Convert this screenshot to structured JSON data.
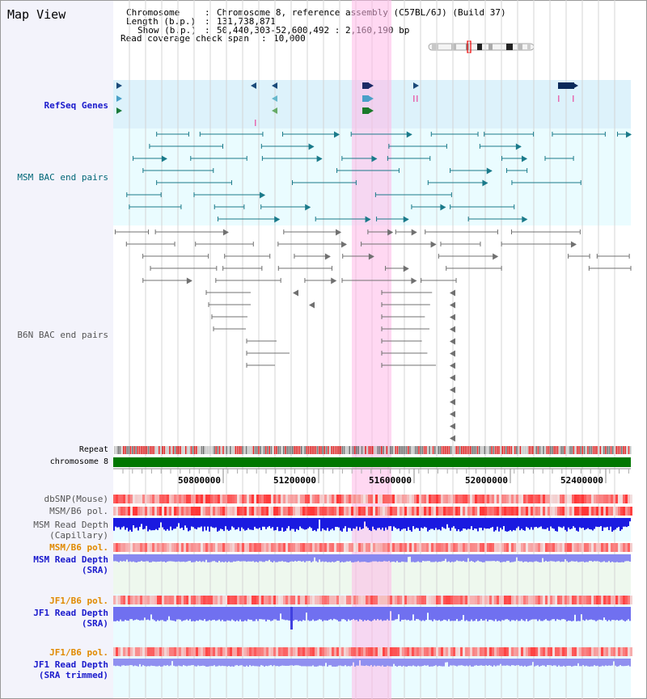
{
  "title": "Map View",
  "info": {
    "chromosome_label": "Chromosome",
    "chromosome_value": "Chromosome 8, reference assembly (C57BL/6J) (Build 37)",
    "length_label": "Length (b.p.)",
    "length_value": "131,738,871",
    "show_label": "Show (b.p.)",
    "show_value": "50,440,303-52,600,492 : 2,160,190 bp",
    "coverage_label": "Read coverage check span",
    "coverage_value": "10,000"
  },
  "tracks": {
    "refseq": "RefSeq Genes",
    "msm_bac": "MSM BAC end pairs",
    "b6n_bac": "B6N BAC end pairs",
    "repeat": "Repeat",
    "chromosome": "chromosome 8",
    "dbsnp": "dbSNP(Mouse)",
    "msm_pol": "MSM/B6 pol.",
    "msm_depth_cap_1": "MSM Read Depth",
    "msm_depth_cap_2": "(Capillary)",
    "msm_pol_sra": "MSM/B6 pol.",
    "msm_depth_sra_1": "MSM Read Depth",
    "msm_depth_sra_2": "(SRA)",
    "jf1_pol": "JF1/B6 pol.",
    "jf1_depth_1": "JF1 Read Depth",
    "jf1_depth_2": "(SRA)",
    "jf1_pol_trim": "JF1/B6 pol.",
    "jf1_trim_1": "JF1 Read Depth",
    "jf1_trim_2": "(SRA trimmed)"
  },
  "axis": {
    "ticks": [
      "50800000",
      "51200000",
      "51600000",
      "52000000",
      "52400000"
    ]
  },
  "colors": {
    "blue_label": "#1a1acc",
    "teal_label": "#006677",
    "gray_label": "#555555",
    "orange_label": "#e08a00",
    "highlight": "#ffd0f0",
    "chromosome_bar": "#007700",
    "depth_msm_cap": "#1a1ae0",
    "depth_sra": "#8080f0"
  }
}
